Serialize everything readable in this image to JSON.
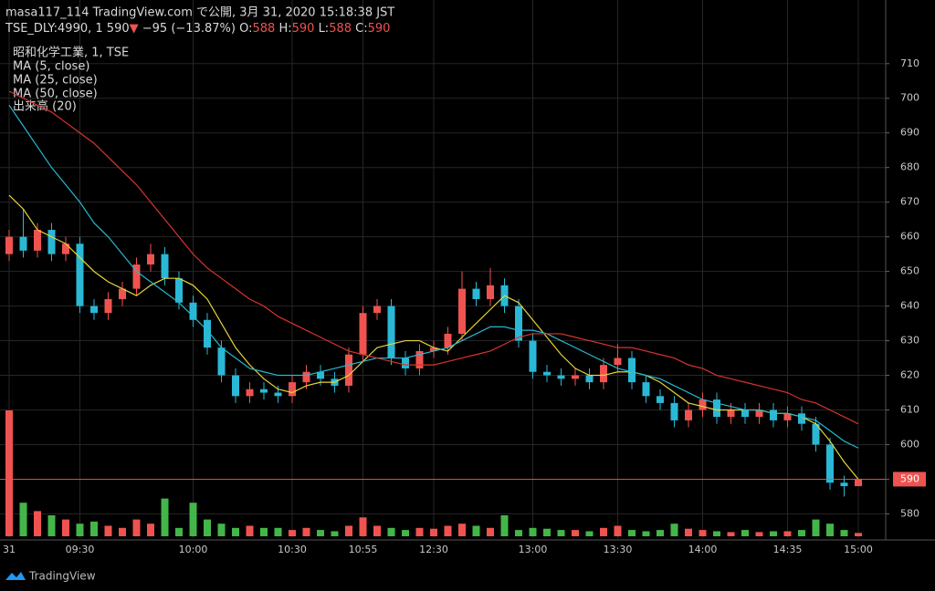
{
  "header": {
    "line1": "masa117_114 TradingView.com で公開, 3月 31, 2020 15:18:38 JST",
    "symbol": "TSE_DLY:4990, 1",
    "price": "590",
    "arrow": "▼",
    "change": "−95 (−13.87%)",
    "ohlc": [
      {
        "key": "O:",
        "value": "588"
      },
      {
        "key": "H:",
        "value": "590"
      },
      {
        "key": "L:",
        "value": "588"
      },
      {
        "key": "C:",
        "value": "590"
      }
    ]
  },
  "footer": {
    "brand": "TradingView"
  },
  "chart_data": {
    "type": "candlestick",
    "title": "昭和化学工業, 1, TSE",
    "up_color": "#ef5350",
    "down_color": "#2ab8d6",
    "volume_up_color": "#ef5350",
    "volume_down_color": "#43b649",
    "open": [
      655,
      660,
      656,
      662,
      655,
      658,
      640,
      638,
      642,
      645,
      652,
      655,
      648,
      641,
      636,
      628,
      620,
      614,
      616,
      615,
      614,
      618,
      621,
      619,
      617,
      626,
      638,
      640,
      625,
      622,
      627,
      628,
      632,
      645,
      642,
      646,
      640,
      630,
      621,
      620,
      619,
      620,
      618,
      623,
      625,
      618,
      614,
      612,
      607,
      610,
      613,
      608,
      610,
      608,
      610,
      607,
      609,
      606,
      600,
      589,
      588
    ],
    "high": [
      662,
      668,
      664,
      664,
      660,
      660,
      642,
      644,
      647,
      654,
      658,
      657,
      650,
      643,
      638,
      630,
      622,
      618,
      618,
      617,
      620,
      623,
      623,
      621,
      628,
      640,
      642,
      642,
      627,
      629,
      630,
      634,
      650,
      647,
      651,
      648,
      642,
      632,
      623,
      622,
      622,
      622,
      625,
      629,
      627,
      620,
      616,
      614,
      612,
      615,
      615,
      612,
      612,
      612,
      612,
      611,
      611,
      608,
      602,
      591,
      590
    ],
    "low": [
      653,
      654,
      654,
      653,
      653,
      638,
      636,
      636,
      640,
      643,
      650,
      646,
      639,
      634,
      626,
      618,
      612,
      612,
      613,
      612,
      612,
      616,
      617,
      615,
      615,
      624,
      636,
      623,
      620,
      620,
      625,
      626,
      630,
      640,
      640,
      638,
      628,
      619,
      618,
      617,
      617,
      616,
      616,
      621,
      616,
      612,
      610,
      605,
      605,
      608,
      606,
      606,
      606,
      606,
      605,
      605,
      604,
      598,
      587,
      585,
      588
    ],
    "close": [
      660,
      656,
      662,
      655,
      658,
      640,
      638,
      642,
      645,
      652,
      655,
      648,
      641,
      636,
      628,
      620,
      614,
      616,
      615,
      614,
      618,
      621,
      619,
      617,
      626,
      638,
      640,
      625,
      622,
      627,
      628,
      632,
      645,
      642,
      646,
      640,
      630,
      621,
      620,
      619,
      620,
      618,
      623,
      625,
      618,
      614,
      612,
      607,
      610,
      613,
      608,
      610,
      608,
      610,
      607,
      609,
      606,
      600,
      589,
      588,
      590
    ],
    "volume_name": "出来高 (20)",
    "volume": [
      30000,
      8000,
      6000,
      5000,
      4000,
      3000,
      3500,
      2500,
      2000,
      4000,
      3000,
      9000,
      2000,
      8000,
      4000,
      3000,
      2000,
      2500,
      2000,
      2000,
      1500,
      2000,
      1500,
      1200,
      2500,
      4500,
      2500,
      2000,
      1500,
      2000,
      1800,
      2500,
      3000,
      2500,
      2000,
      5000,
      1500,
      2000,
      1800,
      1500,
      1500,
      1200,
      2000,
      2500,
      1500,
      1200,
      1500,
      3000,
      1800,
      1500,
      1200,
      1000,
      1500,
      1000,
      1200,
      1200,
      1500,
      4000,
      3000,
      1500,
      800
    ],
    "series": [
      {
        "name": "MA (5, close)",
        "color": "#e6d43a",
        "values": [
          672,
          668,
          662,
          660,
          658,
          654,
          650,
          647,
          645,
          643,
          646,
          648,
          648,
          646,
          642,
          635,
          628,
          623,
          619,
          616,
          615,
          617,
          618,
          618,
          620,
          624,
          628,
          629,
          630,
          630,
          628,
          627,
          631,
          635,
          639,
          643,
          641,
          636,
          631,
          626,
          622,
          620,
          620,
          621,
          621,
          620,
          618,
          615,
          612,
          611,
          610,
          610,
          610,
          610,
          609,
          609,
          608,
          606,
          601,
          595,
          590
        ]
      },
      {
        "name": "MA (25, close)",
        "color": "#26b8d0",
        "values": [
          698,
          692,
          686,
          680,
          675,
          670,
          664,
          660,
          655,
          650,
          647,
          644,
          641,
          637,
          633,
          628,
          625,
          622,
          621,
          620,
          620,
          620,
          621,
          622,
          623,
          624,
          625,
          625,
          625,
          626,
          627,
          628,
          630,
          632,
          634,
          634,
          633,
          633,
          632,
          630,
          628,
          626,
          624,
          622,
          621,
          620,
          619,
          617,
          615,
          613,
          612,
          611,
          610,
          610,
          609,
          609,
          608,
          607,
          604,
          601,
          599
        ]
      },
      {
        "name": "MA (50, close)",
        "color": "#d9342b",
        "values": [
          702,
          700,
          698,
          696,
          693,
          690,
          687,
          683,
          679,
          675,
          670,
          665,
          660,
          655,
          651,
          648,
          645,
          642,
          640,
          637,
          635,
          633,
          631,
          629,
          627,
          626,
          625,
          624,
          623,
          623,
          623,
          624,
          625,
          626,
          627,
          629,
          631,
          632,
          632,
          632,
          631,
          630,
          629,
          628,
          628,
          627,
          626,
          625,
          623,
          622,
          620,
          619,
          618,
          617,
          616,
          615,
          613,
          612,
          610,
          608,
          606
        ]
      }
    ],
    "x_ticks": [
      {
        "value": 0,
        "label": "31"
      },
      {
        "value": 5,
        "label": "09:30"
      },
      {
        "value": 13,
        "label": "10:00"
      },
      {
        "value": 20,
        "label": "10:30"
      },
      {
        "value": 25,
        "label": "10:55"
      },
      {
        "value": 30,
        "label": "12:30"
      },
      {
        "value": 37,
        "label": "13:00"
      },
      {
        "value": 43,
        "label": "13:30"
      },
      {
        "value": 49,
        "label": "14:00"
      },
      {
        "value": 55,
        "label": "14:35"
      },
      {
        "value": 60,
        "label": "15:00"
      }
    ],
    "ylim": [
      573,
      721
    ],
    "yticks": [
      580,
      590,
      600,
      610,
      620,
      630,
      640,
      650,
      660,
      670,
      680,
      690,
      700,
      710
    ],
    "grid": true
  }
}
